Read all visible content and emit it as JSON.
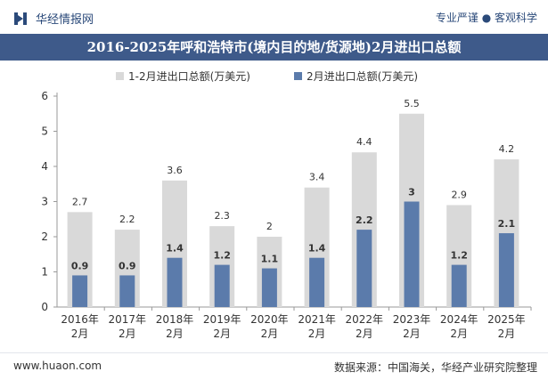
{
  "header": {
    "brand": "华经情报网",
    "tagline": "专业严谨 ● 客观科学"
  },
  "footer": {
    "website": "www.huaon.com",
    "source": "数据来源：中国海关，华经产业研究院整理"
  },
  "colors": {
    "title_bg": "#3e5a8a",
    "series_1": "#d9d9d9",
    "series_2": "#5b7bab"
  },
  "chart_data": {
    "type": "bar",
    "title": "2016-2025年呼和浩特市(境内目的地/货源地)2月进出口总额",
    "categories": [
      "2016年\n2月",
      "2017年\n2月",
      "2018年\n2月",
      "2019年\n2月",
      "2020年\n2月",
      "2021年\n2月",
      "2022年\n2月",
      "2023年\n2月",
      "2024年\n2月",
      "2025年\n2月"
    ],
    "series": [
      {
        "name": "1-2月进出口总额(万美元)",
        "values": [
          2.7,
          2.2,
          3.6,
          2.3,
          2,
          3.4,
          4.4,
          5.5,
          2.9,
          4.2
        ],
        "labels": [
          "2.7",
          "2.2",
          "3.6",
          "2.3",
          "2",
          "3.4",
          "4.4",
          "5.5",
          "2.9",
          "4.2"
        ]
      },
      {
        "name": "2月进出口总额(万美元)",
        "values": [
          0.9,
          0.9,
          1.4,
          1.2,
          1.1,
          1.4,
          2.2,
          3,
          1.2,
          2.1
        ],
        "labels": [
          "0.9",
          "0.9",
          "1.4",
          "1.2",
          "1.1",
          "1.4",
          "2.2",
          "3",
          "1.2",
          "2.1"
        ]
      }
    ],
    "ylim": [
      0,
      6
    ],
    "yticks": [
      0,
      1,
      2,
      3,
      4,
      5,
      6
    ],
    "grid": false,
    "legend": "top-center"
  }
}
